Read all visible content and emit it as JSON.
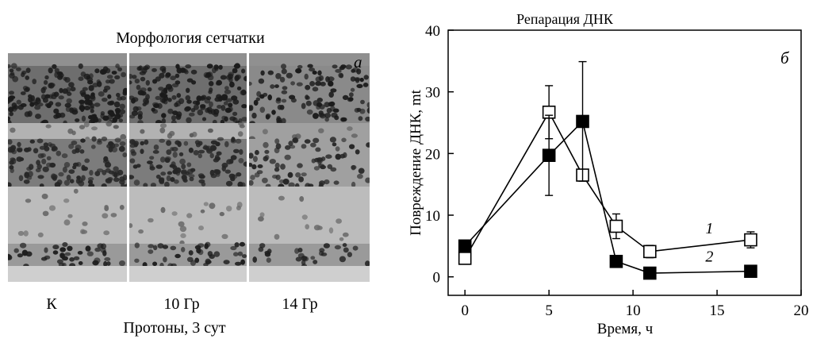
{
  "panel_a": {
    "title": "Морфология сетчатки",
    "letter": "а",
    "samples": [
      "К",
      "10 Гр",
      "14 Гр"
    ],
    "caption": "Протоны,  3 сут"
  },
  "chart_data": {
    "type": "line",
    "title": "Репарация ДНК",
    "panel_letter": "б",
    "xlabel": "Время,  ч",
    "ylabel": "Повреждение ДНК,  mt",
    "xlim": [
      -1,
      20
    ],
    "ylim": [
      -3,
      40
    ],
    "xticks": [
      0,
      5,
      10,
      15,
      20
    ],
    "yticks": [
      0,
      10,
      20,
      30,
      40
    ],
    "series": [
      {
        "name": "1",
        "marker": "open-square",
        "x": [
          0,
          5,
          7,
          9,
          11,
          17
        ],
        "y": [
          3,
          26.7,
          16.5,
          8.2,
          4.1,
          6
        ],
        "err": [
          0,
          4.3,
          0,
          2,
          1,
          1.3
        ]
      },
      {
        "name": "2",
        "marker": "filled-square",
        "x": [
          0,
          5,
          7,
          9,
          11,
          17
        ],
        "y": [
          5,
          19.7,
          25.2,
          2.5,
          0.6,
          0.9
        ],
        "err": [
          0,
          6.5,
          9.7,
          0,
          0,
          0
        ]
      }
    ]
  }
}
